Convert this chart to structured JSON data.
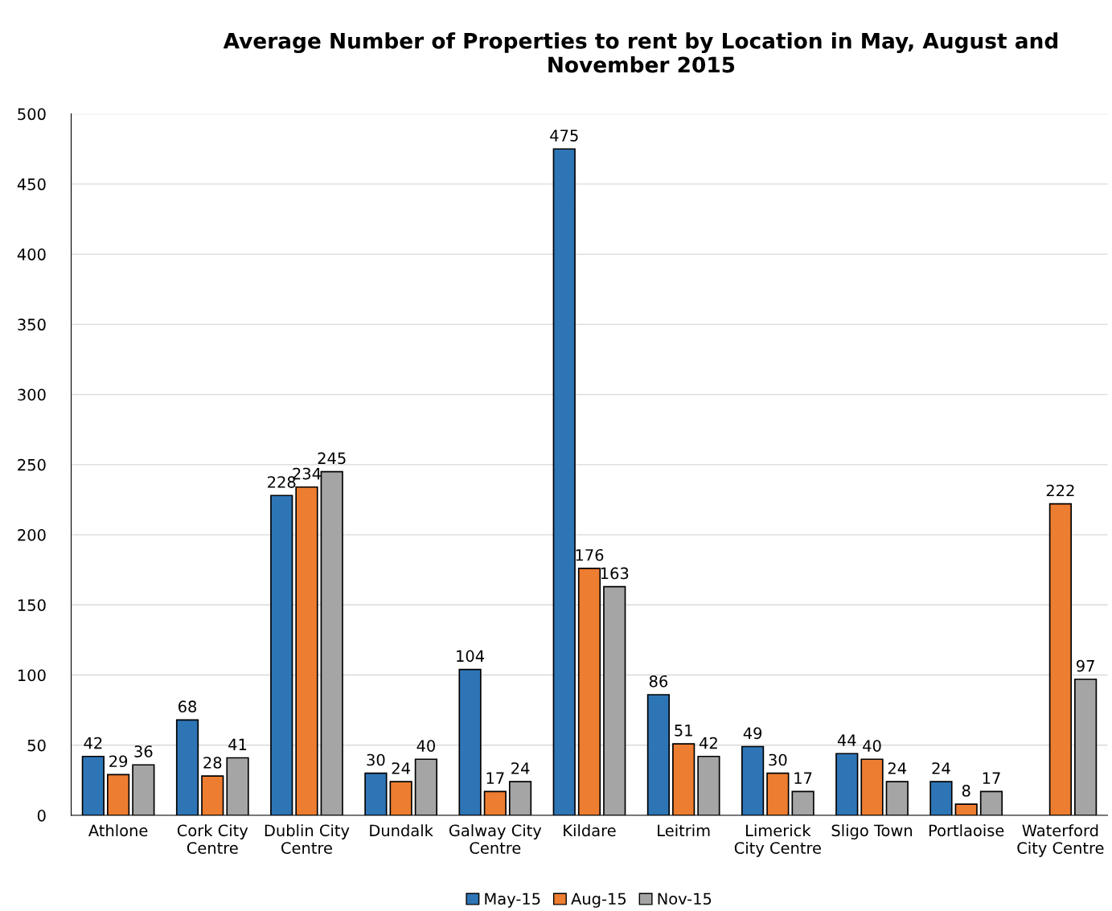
{
  "chart_data": {
    "type": "bar",
    "title": "Average Number of Properties to rent by Location in May, August and November 2015",
    "categories": [
      "Athlone",
      "Cork City\nCentre",
      "Dublin City\nCentre",
      "Dundalk",
      "Galway City\nCentre",
      "Kildare",
      "Leitrim",
      "Limerick\nCity Centre",
      "Sligo Town",
      "Portlaoise",
      "Waterford\nCity Centre"
    ],
    "series": [
      {
        "name": "May-15",
        "color": "#2e75b6",
        "values": [
          42,
          68,
          228,
          30,
          104,
          475,
          86,
          49,
          44,
          24,
          null
        ]
      },
      {
        "name": "Aug-15",
        "color": "#ed7d31",
        "values": [
          29,
          28,
          234,
          24,
          17,
          176,
          51,
          30,
          40,
          8,
          222
        ]
      },
      {
        "name": "Nov-15",
        "color": "#a5a5a5",
        "values": [
          36,
          41,
          245,
          40,
          24,
          163,
          42,
          17,
          24,
          17,
          97
        ]
      }
    ],
    "ylim": [
      0,
      500
    ],
    "yticks": [
      0,
      50,
      100,
      150,
      200,
      250,
      300,
      350,
      400,
      450,
      500
    ],
    "grid": "y",
    "legend": "bottom",
    "data_labels": true
  }
}
